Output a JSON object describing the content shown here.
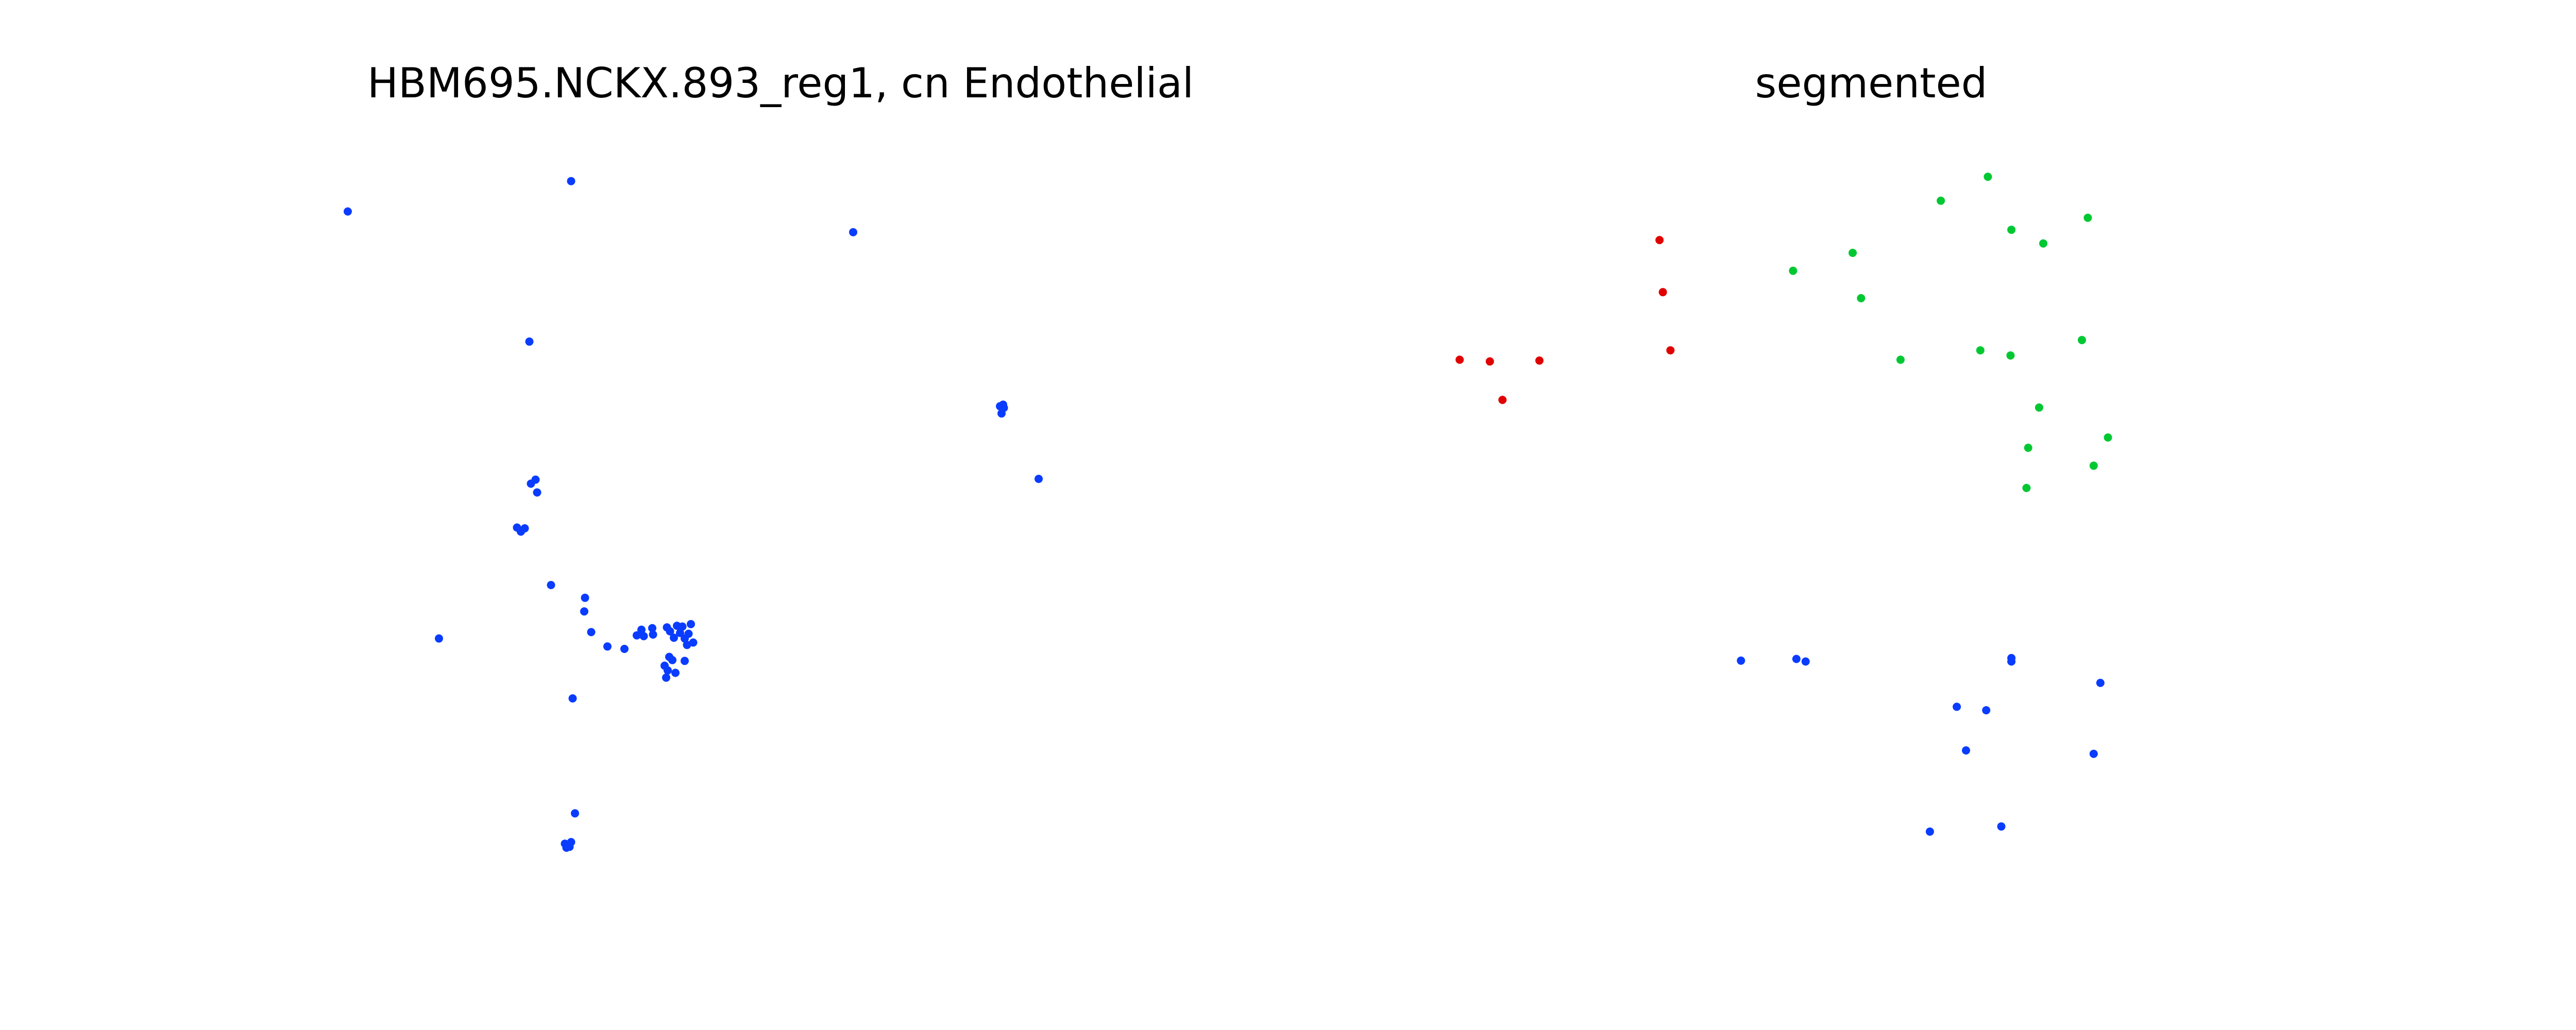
{
  "chart_data": [
    {
      "type": "scatter",
      "title": "HBM695.NCKX.893_reg1, cn Endothelial",
      "axes_visible": false,
      "grid": false,
      "xlim": [
        0,
        100
      ],
      "ylim": [
        0,
        100
      ],
      "series": [
        {
          "color": "#0a3cff",
          "points": [
            [
              2.0,
              94.8
            ],
            [
              30.9,
              98.6
            ],
            [
              67.4,
              92.2
            ],
            [
              25.5,
              78.5
            ],
            [
              25.7,
              60.7
            ],
            [
              26.3,
              61.2
            ],
            [
              26.5,
              59.6
            ],
            [
              23.9,
              55.2
            ],
            [
              24.4,
              54.7
            ],
            [
              24.9,
              55.1
            ],
            [
              86.4,
              70.4
            ],
            [
              86.6,
              69.5
            ],
            [
              86.8,
              70.6
            ],
            [
              86.9,
              70.2
            ],
            [
              91.4,
              61.3
            ],
            [
              28.3,
              48.0
            ],
            [
              32.7,
              46.4
            ],
            [
              32.6,
              44.7
            ],
            [
              13.8,
              41.3
            ],
            [
              33.5,
              42.1
            ],
            [
              35.6,
              40.3
            ],
            [
              37.8,
              40.0
            ],
            [
              39.4,
              41.7
            ],
            [
              40.0,
              42.4
            ],
            [
              40.3,
              41.6
            ],
            [
              41.4,
              42.6
            ],
            [
              41.5,
              41.8
            ],
            [
              43.3,
              42.7
            ],
            [
              43.7,
              42.2
            ],
            [
              44.2,
              41.4
            ],
            [
              44.6,
              42.9
            ],
            [
              45.0,
              42.0
            ],
            [
              45.3,
              42.8
            ],
            [
              45.6,
              41.3
            ],
            [
              45.9,
              40.5
            ],
            [
              46.1,
              41.9
            ],
            [
              46.4,
              43.1
            ],
            [
              46.7,
              40.8
            ],
            [
              43.6,
              39.0
            ],
            [
              44.0,
              38.6
            ],
            [
              43.0,
              37.9
            ],
            [
              43.4,
              37.3
            ],
            [
              44.4,
              37.0
            ],
            [
              45.6,
              38.5
            ],
            [
              43.2,
              36.4
            ],
            [
              31.1,
              33.8
            ],
            [
              31.4,
              19.4
            ],
            [
              30.1,
              15.6
            ],
            [
              30.5,
              15.4
            ],
            [
              30.9,
              15.8
            ],
            [
              30.3,
              15.1
            ],
            [
              30.7,
              15.2
            ]
          ]
        }
      ]
    },
    {
      "type": "scatter",
      "title": "segmented",
      "axes_visible": false,
      "grid": false,
      "xlim": [
        0,
        100
      ],
      "ylim": [
        0,
        100
      ],
      "series": [
        {
          "color": "#e00000",
          "points": [
            [
              0.5,
              77.2
            ],
            [
              4.1,
              77.0
            ],
            [
              10.0,
              77.1
            ],
            [
              5.6,
              72.5
            ],
            [
              24.3,
              91.2
            ],
            [
              24.7,
              85.1
            ],
            [
              25.6,
              78.3
            ]
          ]
        },
        {
          "color": "#00c832",
          "points": [
            [
              63.4,
              98.6
            ],
            [
              57.8,
              95.8
            ],
            [
              75.3,
              93.8
            ],
            [
              66.2,
              92.4
            ],
            [
              70.0,
              90.8
            ],
            [
              47.3,
              89.7
            ],
            [
              40.2,
              87.6
            ],
            [
              48.3,
              84.4
            ],
            [
              74.6,
              79.5
            ],
            [
              62.5,
              78.3
            ],
            [
              66.1,
              77.7
            ],
            [
              53.0,
              77.2
            ],
            [
              69.5,
              71.6
            ],
            [
              77.7,
              68.1
            ],
            [
              68.2,
              66.9
            ],
            [
              76.0,
              64.8
            ],
            [
              68.0,
              62.2
            ]
          ]
        },
        {
          "color": "#0a3cff",
          "points": [
            [
              66.2,
              42.3
            ],
            [
              66.2,
              41.9
            ],
            [
              59.7,
              36.6
            ],
            [
              63.2,
              36.2
            ],
            [
              60.8,
              31.5
            ],
            [
              76.0,
              31.1
            ],
            [
              56.5,
              22.0
            ],
            [
              65.0,
              22.6
            ],
            [
              76.8,
              39.4
            ],
            [
              34.0,
              42.0
            ],
            [
              40.6,
              42.2
            ],
            [
              41.7,
              41.9
            ]
          ]
        }
      ]
    }
  ]
}
